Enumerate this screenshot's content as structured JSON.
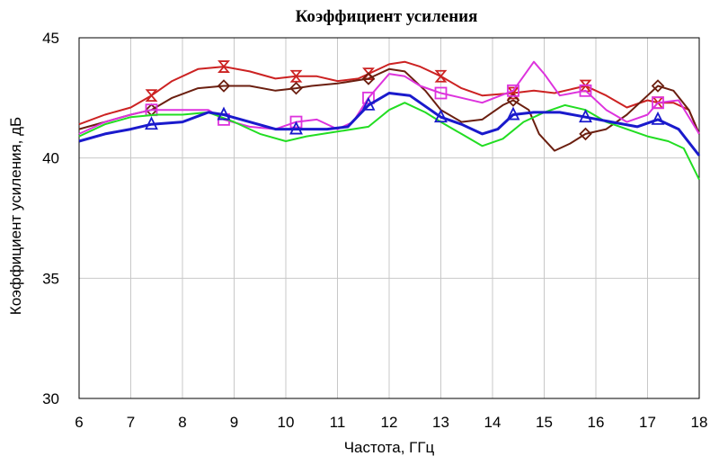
{
  "chart_data": {
    "type": "line",
    "title": "Коэффициент усиления",
    "xlabel": "Частота, ГГц",
    "ylabel": "Коэффициент усиления, дБ",
    "xlim": [
      6,
      18
    ],
    "ylim": [
      30,
      45
    ],
    "x_ticks": [
      "6",
      "7",
      "8",
      "9",
      "10",
      "11",
      "12",
      "13",
      "14",
      "15",
      "16",
      "17",
      "18"
    ],
    "y_ticks": [
      "30",
      "35",
      "40",
      "45"
    ],
    "grid": true,
    "series": [
      {
        "color": "#cc2222",
        "marker": "hourglass",
        "markers_x": [
          7.4,
          8.8,
          10.2,
          11.6,
          13.0,
          14.4,
          15.8,
          17.2
        ],
        "points": [
          [
            6,
            41.4
          ],
          [
            6.5,
            41.8
          ],
          [
            7,
            42.1
          ],
          [
            7.4,
            42.6
          ],
          [
            7.8,
            43.2
          ],
          [
            8.3,
            43.7
          ],
          [
            8.8,
            43.8
          ],
          [
            9.3,
            43.6
          ],
          [
            9.8,
            43.3
          ],
          [
            10.2,
            43.4
          ],
          [
            10.6,
            43.4
          ],
          [
            11.0,
            43.2
          ],
          [
            11.4,
            43.3
          ],
          [
            11.6,
            43.5
          ],
          [
            12.0,
            43.9
          ],
          [
            12.3,
            44.0
          ],
          [
            12.6,
            43.8
          ],
          [
            13.0,
            43.4
          ],
          [
            13.4,
            42.9
          ],
          [
            13.8,
            42.6
          ],
          [
            14.4,
            42.7
          ],
          [
            14.8,
            42.8
          ],
          [
            15.2,
            42.7
          ],
          [
            15.8,
            43.0
          ],
          [
            16.2,
            42.6
          ],
          [
            16.6,
            42.1
          ],
          [
            17.0,
            42.4
          ],
          [
            17.2,
            42.3
          ],
          [
            17.5,
            42.3
          ],
          [
            17.8,
            42.0
          ],
          [
            18,
            41.0
          ]
        ]
      },
      {
        "color": "#6b1f10",
        "marker": "diamond",
        "markers_x": [
          7.4,
          8.8,
          10.2,
          11.6,
          14.4,
          15.8,
          17.2
        ],
        "points": [
          [
            6,
            41.2
          ],
          [
            6.5,
            41.5
          ],
          [
            7,
            41.8
          ],
          [
            7.4,
            42.0
          ],
          [
            7.8,
            42.5
          ],
          [
            8.3,
            42.9
          ],
          [
            8.8,
            43.0
          ],
          [
            9.3,
            43.0
          ],
          [
            9.8,
            42.8
          ],
          [
            10.2,
            42.9
          ],
          [
            10.5,
            43.0
          ],
          [
            11.0,
            43.1
          ],
          [
            11.6,
            43.3
          ],
          [
            12.0,
            43.7
          ],
          [
            12.3,
            43.6
          ],
          [
            12.7,
            42.8
          ],
          [
            13.0,
            42.0
          ],
          [
            13.4,
            41.5
          ],
          [
            13.8,
            41.6
          ],
          [
            14.2,
            42.2
          ],
          [
            14.4,
            42.4
          ],
          [
            14.7,
            42.0
          ],
          [
            14.9,
            41.0
          ],
          [
            15.2,
            40.3
          ],
          [
            15.5,
            40.6
          ],
          [
            15.8,
            41.0
          ],
          [
            16.2,
            41.2
          ],
          [
            16.6,
            41.8
          ],
          [
            17.0,
            42.6
          ],
          [
            17.2,
            43.0
          ],
          [
            17.5,
            42.8
          ],
          [
            17.8,
            42.0
          ],
          [
            18,
            41.0
          ]
        ]
      },
      {
        "color": "#dd33dd",
        "marker": "square",
        "markers_x": [
          7.4,
          8.8,
          10.2,
          11.6,
          13.0,
          14.4,
          15.8,
          17.2
        ],
        "points": [
          [
            6,
            41.0
          ],
          [
            6.5,
            41.5
          ],
          [
            7,
            41.8
          ],
          [
            7.4,
            42.0
          ],
          [
            8.0,
            42.0
          ],
          [
            8.5,
            42.0
          ],
          [
            8.8,
            41.6
          ],
          [
            9.3,
            41.3
          ],
          [
            9.8,
            41.2
          ],
          [
            10.2,
            41.5
          ],
          [
            10.6,
            41.6
          ],
          [
            11.0,
            41.2
          ],
          [
            11.3,
            41.5
          ],
          [
            11.6,
            42.5
          ],
          [
            12.0,
            43.5
          ],
          [
            12.3,
            43.4
          ],
          [
            12.6,
            43.0
          ],
          [
            13.0,
            42.7
          ],
          [
            13.4,
            42.5
          ],
          [
            13.8,
            42.3
          ],
          [
            14.4,
            42.8
          ],
          [
            14.6,
            43.4
          ],
          [
            14.8,
            44.0
          ],
          [
            15.0,
            43.5
          ],
          [
            15.3,
            42.6
          ],
          [
            15.8,
            42.8
          ],
          [
            16.2,
            42.0
          ],
          [
            16.6,
            41.5
          ],
          [
            17.0,
            41.8
          ],
          [
            17.2,
            42.3
          ],
          [
            17.6,
            42.4
          ],
          [
            18,
            41.0
          ]
        ]
      },
      {
        "color": "#22dd22",
        "marker": "none",
        "markers_x": [],
        "points": [
          [
            6,
            40.9
          ],
          [
            6.5,
            41.4
          ],
          [
            7,
            41.7
          ],
          [
            7.5,
            41.8
          ],
          [
            8.0,
            41.8
          ],
          [
            8.5,
            41.9
          ],
          [
            9.0,
            41.5
          ],
          [
            9.5,
            41.0
          ],
          [
            10.0,
            40.7
          ],
          [
            10.4,
            40.9
          ],
          [
            11.0,
            41.1
          ],
          [
            11.6,
            41.3
          ],
          [
            12.0,
            42.0
          ],
          [
            12.3,
            42.3
          ],
          [
            12.7,
            41.9
          ],
          [
            13.0,
            41.5
          ],
          [
            13.4,
            41.0
          ],
          [
            13.8,
            40.5
          ],
          [
            14.2,
            40.8
          ],
          [
            14.6,
            41.5
          ],
          [
            15.0,
            41.9
          ],
          [
            15.4,
            42.2
          ],
          [
            15.8,
            42.0
          ],
          [
            16.2,
            41.5
          ],
          [
            16.6,
            41.2
          ],
          [
            17.0,
            40.9
          ],
          [
            17.4,
            40.7
          ],
          [
            17.7,
            40.4
          ],
          [
            18,
            39.1
          ]
        ]
      },
      {
        "color": "#1a1acc",
        "marker": "triangle",
        "markers_x": [
          7.4,
          8.8,
          10.2,
          11.6,
          13.0,
          14.4,
          15.8,
          17.2
        ],
        "points": [
          [
            6,
            40.7
          ],
          [
            6.5,
            41.0
          ],
          [
            7,
            41.2
          ],
          [
            7.4,
            41.4
          ],
          [
            8.0,
            41.5
          ],
          [
            8.5,
            41.9
          ],
          [
            8.8,
            41.8
          ],
          [
            9.3,
            41.5
          ],
          [
            9.8,
            41.2
          ],
          [
            10.2,
            41.2
          ],
          [
            10.8,
            41.2
          ],
          [
            11.2,
            41.3
          ],
          [
            11.6,
            42.2
          ],
          [
            12.0,
            42.7
          ],
          [
            12.4,
            42.6
          ],
          [
            12.8,
            42.0
          ],
          [
            13.0,
            41.7
          ],
          [
            13.4,
            41.4
          ],
          [
            13.8,
            41.0
          ],
          [
            14.1,
            41.2
          ],
          [
            14.4,
            41.8
          ],
          [
            14.8,
            41.9
          ],
          [
            15.3,
            41.9
          ],
          [
            15.8,
            41.7
          ],
          [
            16.3,
            41.5
          ],
          [
            16.8,
            41.3
          ],
          [
            17.2,
            41.6
          ],
          [
            17.6,
            41.2
          ],
          [
            18,
            40.1
          ]
        ]
      }
    ]
  }
}
